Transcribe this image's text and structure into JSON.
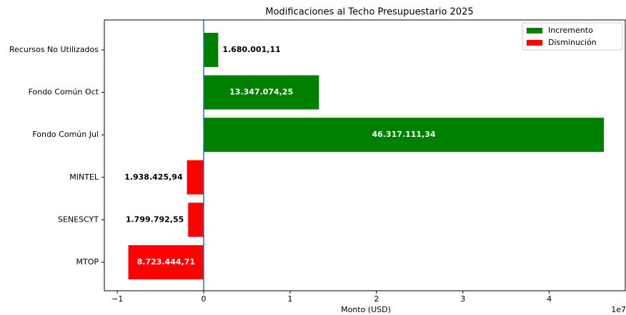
{
  "chart_data": {
    "type": "barh",
    "subtitle": "Modificaciones al Techo Presupuestario 2025",
    "xlabel": "Monto (USD)",
    "x_offset_label": "1e7",
    "categories": [
      "Recursos No Utilizados",
      "Fondo Común Oct",
      "Fondo Común Jul",
      "MINTEL",
      "SENESCYT",
      "MTOP"
    ],
    "values": [
      1680001.11,
      13347074.25,
      46317111.34,
      -1938425.94,
      -1799792.55,
      -8723444.71
    ],
    "value_labels": [
      "1.680.001,11",
      "13.347.074,25",
      "46.317.111,34",
      "1.938.425,94",
      "1.799.792,55",
      "8.723.444,71"
    ],
    "colors": [
      "#008000",
      "#008000",
      "#008000",
      "#ff0000",
      "#ff0000",
      "#ff0000"
    ],
    "xlim": [
      -11500000,
      48800000
    ],
    "xticks": [
      {
        "value": -10000000,
        "label": "−1"
      },
      0,
      {
        "value": 10000000,
        "label": "1"
      },
      {
        "value": 20000000,
        "label": "2"
      },
      {
        "value": 30000000,
        "label": "3"
      },
      {
        "value": 40000000,
        "label": "4"
      }
    ],
    "legend": [
      {
        "name": "Incremento",
        "color": "#008000"
      },
      {
        "name": "Disminución",
        "color": "#ff0000"
      }
    ],
    "legend_loc": "upper right",
    "zero_line_color": "#1f77b4"
  }
}
